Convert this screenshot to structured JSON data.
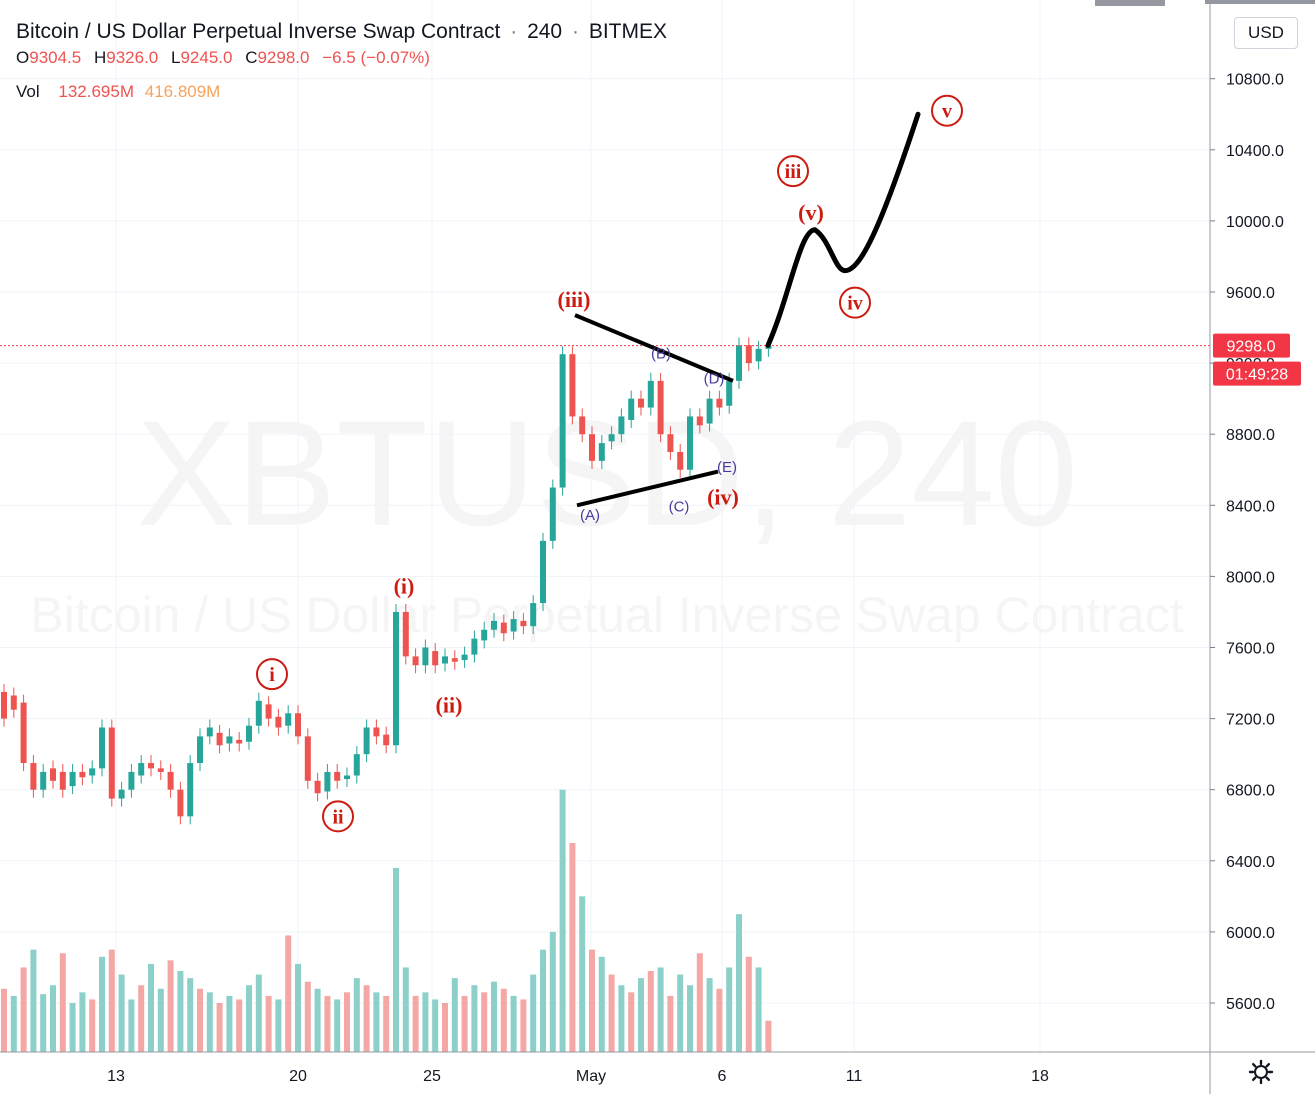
{
  "header": {
    "symbol_title": "Bitcoin / US Dollar Perpetual Inverse Swap Contract",
    "interval": "240",
    "exchange": "BITMEX",
    "ohlc": {
      "open_label": "O",
      "open": "9304.5",
      "high_label": "H",
      "high": "9326.0",
      "low_label": "L",
      "low": "9245.0",
      "close_label": "C",
      "close": "9298.0",
      "change": "−6.5 (−0.07%)"
    },
    "volume": {
      "label": "Vol",
      "value": "132.695M",
      "ma": "416.809M"
    }
  },
  "currency_button": "USD",
  "watermark": {
    "symbol": "XBTUSD, 240",
    "description": "Bitcoin / US Dollar Perpetual Inverse Swap Contract"
  },
  "price_scale": {
    "ticks": [
      "10800.0",
      "10400.0",
      "10000.0",
      "9600.0",
      "9200.0",
      "8800.0",
      "8400.0",
      "8000.0",
      "7600.0",
      "7200.0",
      "6800.0",
      "6400.0",
      "6000.0",
      "5600.0"
    ],
    "last_price_label": "9298.0",
    "countdown_label": "01:49:28"
  },
  "time_scale": {
    "labels": [
      "13",
      "20",
      "25",
      "May",
      "6",
      "11",
      "18"
    ]
  },
  "colors": {
    "up": "#26a69a",
    "down": "#ef5350",
    "up_volume": "#8cd0c9",
    "down_volume": "#f4a7a5",
    "annotation_red": "#cc1b10",
    "annotation_purple": "#4a3b9a",
    "last_price": "#f23645"
  },
  "chart_data": {
    "type": "candlestick",
    "timeframe": "4H",
    "ylim": [
      5400,
      11000
    ],
    "grid": true,
    "price_series": [
      [
        7350,
        7200
      ],
      [
        7330,
        7250
      ],
      [
        7290,
        6950
      ],
      [
        6950,
        6800
      ],
      [
        6800,
        6900
      ],
      [
        6920,
        6850
      ],
      [
        6900,
        6800
      ],
      [
        6820,
        6900
      ],
      [
        6900,
        6870
      ],
      [
        6880,
        6920
      ],
      [
        6920,
        7150
      ],
      [
        7150,
        6750
      ],
      [
        6750,
        6800
      ],
      [
        6800,
        6900
      ],
      [
        6880,
        6950
      ],
      [
        6950,
        6920
      ],
      [
        6920,
        6900
      ],
      [
        6900,
        6800
      ],
      [
        6800,
        6650
      ],
      [
        6650,
        6950
      ],
      [
        6950,
        7100
      ],
      [
        7100,
        7150
      ],
      [
        7120,
        7050
      ],
      [
        7060,
        7100
      ],
      [
        7080,
        7060
      ],
      [
        7070,
        7160
      ],
      [
        7160,
        7300
      ],
      [
        7280,
        7200
      ],
      [
        7210,
        7150
      ],
      [
        7160,
        7230
      ],
      [
        7230,
        7100
      ],
      [
        7100,
        6850
      ],
      [
        6850,
        6780
      ],
      [
        6790,
        6900
      ],
      [
        6900,
        6850
      ],
      [
        6860,
        6880
      ],
      [
        6880,
        7000
      ],
      [
        7000,
        7150
      ],
      [
        7150,
        7100
      ],
      [
        7110,
        7050
      ],
      [
        7050,
        7800
      ],
      [
        7800,
        7550
      ],
      [
        7550,
        7500
      ],
      [
        7500,
        7600
      ],
      [
        7580,
        7500
      ],
      [
        7510,
        7550
      ],
      [
        7540,
        7520
      ],
      [
        7530,
        7560
      ],
      [
        7560,
        7650
      ],
      [
        7640,
        7700
      ],
      [
        7700,
        7750
      ],
      [
        7740,
        7680
      ],
      [
        7690,
        7760
      ],
      [
        7750,
        7720
      ],
      [
        7720,
        7850
      ],
      [
        7850,
        8200
      ],
      [
        8200,
        8500
      ],
      [
        8500,
        9250
      ],
      [
        9250,
        8900
      ],
      [
        8900,
        8800
      ],
      [
        8800,
        8650
      ],
      [
        8650,
        8750
      ],
      [
        8760,
        8800
      ],
      [
        8800,
        8900
      ],
      [
        8880,
        9000
      ],
      [
        9000,
        8950
      ],
      [
        8950,
        9100
      ],
      [
        9100,
        8800
      ],
      [
        8800,
        8700
      ],
      [
        8700,
        8600
      ],
      [
        8600,
        8900
      ],
      [
        8900,
        8850
      ],
      [
        8860,
        9000
      ],
      [
        9000,
        8950
      ],
      [
        8960,
        9100
      ],
      [
        9100,
        9300
      ],
      [
        9300,
        9200
      ],
      [
        9210,
        9280
      ],
      [
        9280,
        9298
      ]
    ],
    "volume_series": [
      [
        5680,
        false
      ],
      [
        5640,
        true
      ],
      [
        5800,
        false
      ],
      [
        5900,
        true
      ],
      [
        5650,
        true
      ],
      [
        5700,
        true
      ],
      [
        5880,
        false
      ],
      [
        5600,
        true
      ],
      [
        5660,
        true
      ],
      [
        5620,
        false
      ],
      [
        5860,
        true
      ],
      [
        5900,
        false
      ],
      [
        5760,
        true
      ],
      [
        5620,
        true
      ],
      [
        5700,
        false
      ],
      [
        5820,
        true
      ],
      [
        5680,
        true
      ],
      [
        5840,
        false
      ],
      [
        5780,
        true
      ],
      [
        5740,
        true
      ],
      [
        5680,
        false
      ],
      [
        5660,
        true
      ],
      [
        5600,
        false
      ],
      [
        5640,
        true
      ],
      [
        5620,
        false
      ],
      [
        5700,
        true
      ],
      [
        5760,
        true
      ],
      [
        5640,
        false
      ],
      [
        5620,
        true
      ],
      [
        5980,
        false
      ],
      [
        5820,
        true
      ],
      [
        5720,
        false
      ],
      [
        5680,
        true
      ],
      [
        5640,
        false
      ],
      [
        5620,
        true
      ],
      [
        5660,
        false
      ],
      [
        5740,
        true
      ],
      [
        5700,
        false
      ],
      [
        5660,
        true
      ],
      [
        5640,
        false
      ],
      [
        6360,
        true
      ],
      [
        5800,
        true
      ],
      [
        5640,
        false
      ],
      [
        5660,
        true
      ],
      [
        5620,
        true
      ],
      [
        5600,
        false
      ],
      [
        5740,
        true
      ],
      [
        5640,
        false
      ],
      [
        5700,
        true
      ],
      [
        5660,
        false
      ],
      [
        5720,
        true
      ],
      [
        5680,
        false
      ],
      [
        5640,
        true
      ],
      [
        5620,
        false
      ],
      [
        5760,
        true
      ],
      [
        5900,
        true
      ],
      [
        6000,
        true
      ],
      [
        6800,
        true
      ],
      [
        6500,
        false
      ],
      [
        6200,
        true
      ],
      [
        5900,
        false
      ],
      [
        5860,
        true
      ],
      [
        5760,
        false
      ],
      [
        5700,
        true
      ],
      [
        5660,
        false
      ],
      [
        5740,
        true
      ],
      [
        5780,
        false
      ],
      [
        5800,
        true
      ],
      [
        5640,
        false
      ],
      [
        5760,
        true
      ],
      [
        5700,
        true
      ],
      [
        5880,
        false
      ],
      [
        5740,
        true
      ],
      [
        5680,
        false
      ],
      [
        5800,
        true
      ],
      [
        6100,
        true
      ],
      [
        5860,
        false
      ],
      [
        5800,
        true
      ],
      [
        5500,
        false
      ]
    ],
    "time_labels": [
      "13",
      "20",
      "25",
      "May",
      "6",
      "11",
      "18"
    ],
    "annotations": [
      {
        "text": "i",
        "style": "circled",
        "price": 7450
      },
      {
        "text": "ii",
        "style": "circled",
        "price": 6650
      },
      {
        "text": "(i)",
        "style": "plain",
        "price": 7950
      },
      {
        "text": "(ii)",
        "style": "plain",
        "price": 7280
      },
      {
        "text": "(iii)",
        "style": "plain",
        "price": 9560
      },
      {
        "text": "(iv)",
        "style": "plain",
        "price": 8450
      },
      {
        "text": "(A)",
        "style": "small",
        "price": 8350
      },
      {
        "text": "(B)",
        "style": "small",
        "price": 9260
      },
      {
        "text": "(C)",
        "style": "small",
        "price": 8400
      },
      {
        "text": "(D)",
        "style": "small",
        "price": 9120
      },
      {
        "text": "(E)",
        "style": "small",
        "price": 8620
      },
      {
        "text": "iii",
        "style": "circled",
        "price": 10280
      },
      {
        "text": "(v)",
        "style": "plain",
        "price": 10050
      },
      {
        "text": "iv",
        "style": "circled",
        "price": 9540
      },
      {
        "text": "v",
        "style": "circled",
        "price": 10620
      }
    ],
    "projection_path": [
      9300,
      9950,
      9720,
      10600
    ],
    "triangle_lines": {
      "upper": [
        9470,
        9100
      ],
      "lower": [
        8400,
        8590
      ]
    },
    "current_price": 9298.0
  }
}
